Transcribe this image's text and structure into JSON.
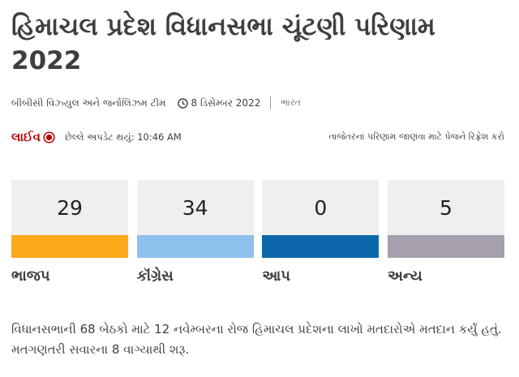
{
  "header": {
    "title": "હિમાચલ પ્રદેશ વિધાનસભા ચૂંટણી પરિણામ 2022",
    "byline": "બીબીસી વિઝ્યુલ અને જર્નાલિઝમ ટીમ",
    "date": "8 ડિસેમ્બર 2022",
    "location": "ભારત"
  },
  "live": {
    "tag": "લાઈવ",
    "updated": "છેલ્લે અપડેટ થયું: 10:46 AM",
    "refresh": "તાજેતરનાં પરિણામ જાણવા માટે પેજને રિફ્રેશ કરો"
  },
  "parties": [
    {
      "name": "ભાજપ",
      "seats": "29",
      "color": "#fdaa1a"
    },
    {
      "name": "કૉંગ્રેસ",
      "seats": "34",
      "color": "#8fc1ee"
    },
    {
      "name": "આપ",
      "seats": "0",
      "color": "#0b67aa"
    },
    {
      "name": "અન્ય",
      "seats": "5",
      "color": "#a59fae"
    }
  ],
  "paragraph": "વિધાનસભાની 68 બેઠકો માટે 12 નવેમ્બરના રોજ હિમાચલ પ્રદેશના લાખો મતદારોએ મતદાન કર્યું હતું. મતગણતરી સવારના 8 વાગ્યાથી શરૂ."
}
